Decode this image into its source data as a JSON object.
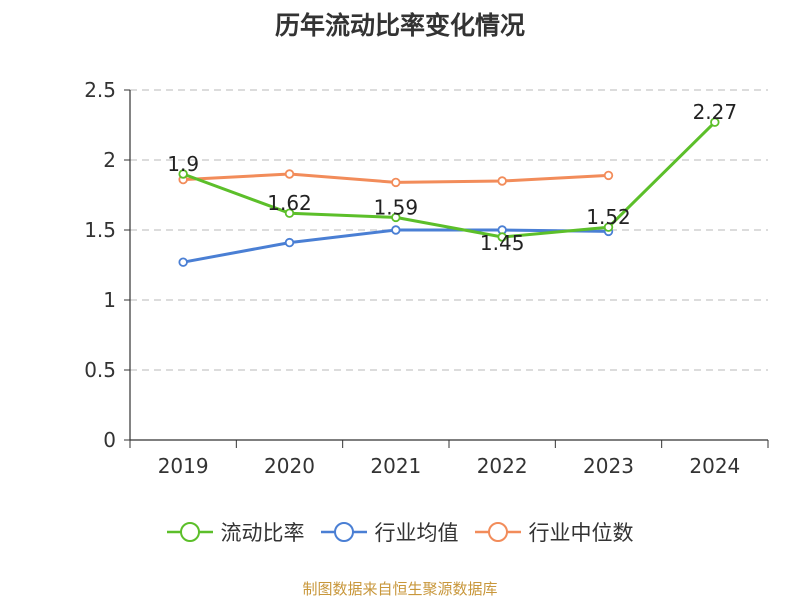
{
  "chart_data": {
    "type": "line",
    "title": "历年流动比率变化情况",
    "categories": [
      "2019",
      "2020",
      "2021",
      "2022",
      "2023",
      "2024"
    ],
    "y_ticks": [
      "0",
      "0.5",
      "1",
      "1.5",
      "2",
      "2.5"
    ],
    "ylim": [
      0,
      2.5
    ],
    "grid": true,
    "legend_position": "bottom",
    "series": [
      {
        "name": "流动比率",
        "color": "#5cbf2a",
        "values": [
          1.9,
          1.62,
          1.59,
          1.45,
          1.52,
          2.27
        ],
        "labels": [
          "1.9",
          "1.62",
          "1.59",
          "1.45",
          "1.52",
          "2.27"
        ]
      },
      {
        "name": "行业均值",
        "color": "#4a7fd4",
        "values": [
          1.27,
          1.41,
          1.5,
          1.5,
          1.49,
          null
        ]
      },
      {
        "name": "行业中位数",
        "color": "#f28c5a",
        "values": [
          1.86,
          1.9,
          1.84,
          1.85,
          1.89,
          null
        ]
      }
    ]
  },
  "source_note": "制图数据来自恒生聚源数据库"
}
